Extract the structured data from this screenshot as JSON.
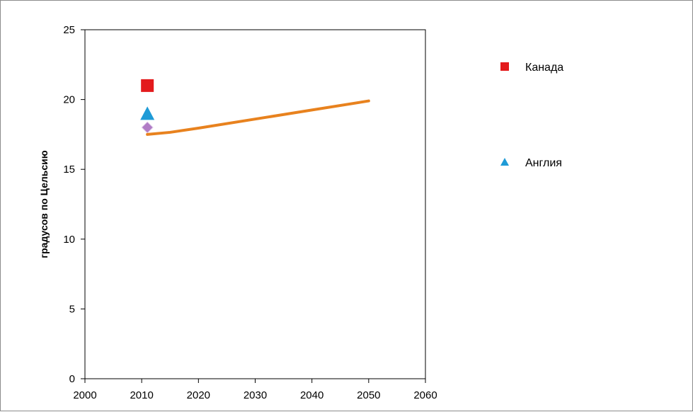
{
  "chart_data": {
    "type": "scatter",
    "title": "",
    "xlabel": "",
    "ylabel": "градусов по Цельсию",
    "xlim": [
      2000,
      2060
    ],
    "ylim": [
      0,
      25
    ],
    "x_ticks": [
      2000,
      2010,
      2020,
      2030,
      2040,
      2050,
      2060
    ],
    "y_ticks": [
      0,
      5,
      10,
      15,
      20,
      25
    ],
    "grid": false,
    "legend_position": "right",
    "series": [
      {
        "name": "Канада",
        "kind": "marker",
        "marker": "square",
        "color": "#e31a1c",
        "x": [
          2011
        ],
        "y": [
          21
        ]
      },
      {
        "name": "Англия",
        "kind": "marker",
        "marker": "triangle",
        "color": "#1f9bd7",
        "x": [
          2011
        ],
        "y": [
          19
        ]
      },
      {
        "kind": "marker",
        "marker": "diamond",
        "color": "#b07cc6",
        "x": [
          2011
        ],
        "y": [
          18
        ]
      },
      {
        "kind": "line",
        "color": "#e8821e",
        "x": [
          2011,
          2015,
          2020,
          2030,
          2040,
          2050
        ],
        "y": [
          17.5,
          17.65,
          17.95,
          18.6,
          19.25,
          19.9
        ]
      }
    ]
  }
}
